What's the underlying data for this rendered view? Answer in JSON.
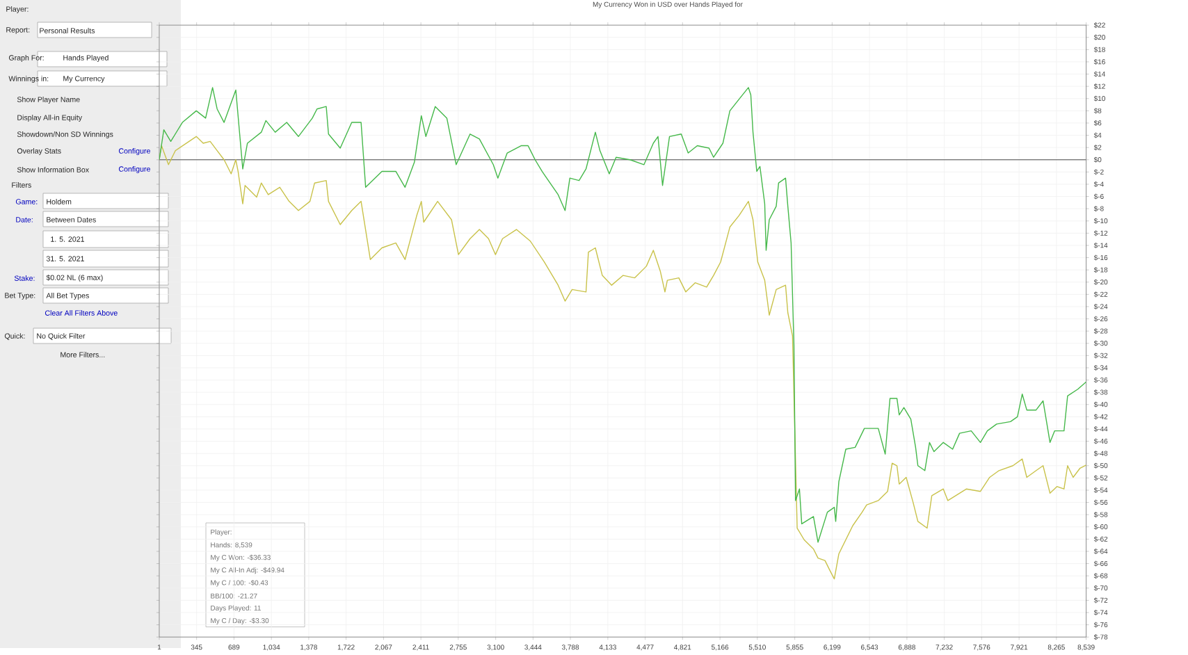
{
  "chart_data": {
    "type": "line",
    "title": "My Currency Won in USD over Hands Played for",
    "series": [
      {
        "color": "#45b84a",
        "x": [
          1,
          43,
          107,
          214,
          342,
          428,
          492,
          534,
          598,
          706,
          770,
          813,
          941,
          983,
          1069,
          1175,
          1283,
          1411,
          1454,
          1539,
          1560,
          1668,
          1774,
          1860,
          1902,
          2052,
          2180,
          2265,
          2351,
          2415,
          2457,
          2543,
          2650,
          2736,
          2864,
          2950,
          3078,
          3120,
          3206,
          3334,
          3398,
          3463,
          3527,
          3675,
          3739,
          3783,
          3868,
          3932,
          4018,
          4060,
          4146,
          4209,
          4338,
          4466,
          4552,
          4595,
          4637,
          4701,
          4809,
          4873,
          4957,
          5065,
          5107,
          5193,
          5257,
          5342,
          5428,
          5450,
          5470,
          5505,
          5534,
          5578,
          5591,
          5620,
          5684,
          5706,
          5770,
          5791,
          5821,
          5847,
          5862,
          5898,
          5919,
          6027,
          6069,
          6155,
          6219,
          6232,
          6261,
          6325,
          6411,
          6496,
          6624,
          6688,
          6732,
          6796,
          6817,
          6860,
          6924,
          6968,
          6989,
          7053,
          7096,
          7137,
          7223,
          7309,
          7373,
          7480,
          7565,
          7629,
          7714,
          7842,
          7906,
          7950,
          7992,
          8078,
          8142,
          8206,
          8249,
          8335,
          8368,
          8462,
          8539
        ],
        "values": [
          0,
          4.9,
          3.0,
          6.1,
          8.0,
          6.8,
          11.8,
          8.3,
          6.1,
          11.4,
          -1.5,
          2.7,
          4.5,
          6.4,
          4.5,
          6.1,
          3.8,
          6.8,
          8.3,
          8.7,
          4.2,
          1.9,
          6.1,
          6.1,
          -4.5,
          -1.9,
          -1.9,
          -4.5,
          -0.4,
          7.2,
          3.8,
          8.7,
          6.8,
          -0.8,
          4.2,
          3.4,
          -0.8,
          -3.0,
          1.1,
          2.3,
          2.3,
          0,
          -1.9,
          -5.7,
          -8.3,
          -3.0,
          -3.4,
          -1.5,
          4.5,
          1.5,
          -2.3,
          0.4,
          0,
          -0.8,
          2.7,
          3.8,
          -4.2,
          3.8,
          4.2,
          1.1,
          2.3,
          1.9,
          0.4,
          2.7,
          8.0,
          9.9,
          11.8,
          10.6,
          4.5,
          -1.9,
          -1.1,
          -7.2,
          -14.8,
          -9.8,
          -7.6,
          -3.8,
          -3.0,
          -7.6,
          -13.6,
          -30.3,
          -55.7,
          -53.8,
          -59.5,
          -58.3,
          -62.5,
          -57.6,
          -56.8,
          -59.1,
          -52.6,
          -47.3,
          -47.0,
          -43.9,
          -43.9,
          -48.1,
          -39.0,
          -39.0,
          -41.7,
          -40.5,
          -42.4,
          -47.0,
          -50.0,
          -50.8,
          -46.2,
          -47.7,
          -46.2,
          -47.3,
          -44.7,
          -44.3,
          -46.2,
          -44.3,
          -43.2,
          -42.8,
          -42.0,
          -38.3,
          -40.9,
          -40.9,
          -39.4,
          -46.2,
          -44.3,
          -44.3,
          -38.6,
          -37.5,
          -36.3
        ]
      },
      {
        "color": "#c9c24a",
        "x": [
          1,
          22,
          86,
          150,
          342,
          406,
          470,
          534,
          598,
          663,
          706,
          727,
          770,
          791,
          898,
          941,
          1005,
          1111,
          1197,
          1283,
          1389,
          1432,
          1539,
          1560,
          1668,
          1774,
          1860,
          1945,
          2052,
          2180,
          2265,
          2373,
          2415,
          2437,
          2565,
          2693,
          2757,
          2864,
          2950,
          3034,
          3098,
          3163,
          3291,
          3419,
          3547,
          3675,
          3739,
          3804,
          3932,
          3954,
          4018,
          4082,
          4168,
          4274,
          4381,
          4488,
          4552,
          4616,
          4659,
          4681,
          4787,
          4851,
          4937,
          5043,
          5107,
          5172,
          5257,
          5342,
          5428,
          5470,
          5514,
          5578,
          5620,
          5684,
          5770,
          5791,
          5834,
          5877,
          5941,
          6027,
          6069,
          6133,
          6175,
          6219,
          6261,
          6325,
          6389,
          6475,
          6517,
          6624,
          6710,
          6752,
          6796,
          6817,
          6881,
          6945,
          6989,
          7074,
          7117,
          7223,
          7265,
          7437,
          7565,
          7650,
          7736,
          7864,
          7950,
          7992,
          8078,
          8142,
          8206,
          8270,
          8335,
          8368,
          8419,
          8483,
          8539
        ],
        "values": [
          0,
          2.3,
          -0.8,
          1.5,
          3.8,
          2.7,
          3.0,
          1.5,
          0,
          -2.3,
          0,
          -1.9,
          -7.2,
          -4.2,
          -6.1,
          -3.8,
          -5.7,
          -4.5,
          -6.8,
          -8.3,
          -6.8,
          -3.8,
          -3.4,
          -6.8,
          -10.6,
          -8.3,
          -6.8,
          -16.3,
          -14.4,
          -13.6,
          -16.3,
          -9.1,
          -6.8,
          -10.2,
          -6.8,
          -9.8,
          -15.5,
          -12.9,
          -11.4,
          -12.9,
          -15.5,
          -12.9,
          -11.4,
          -13.3,
          -16.7,
          -20.5,
          -23.1,
          -21.2,
          -21.6,
          -15.1,
          -14.4,
          -18.9,
          -20.5,
          -18.9,
          -19.3,
          -17.4,
          -14.8,
          -18.2,
          -21.6,
          -19.7,
          -19.3,
          -21.6,
          -20.1,
          -20.8,
          -18.9,
          -16.7,
          -11.0,
          -9.1,
          -6.8,
          -9.8,
          -16.7,
          -19.7,
          -25.4,
          -21.2,
          -20.5,
          -25.0,
          -28.8,
          -60.2,
          -62.1,
          -63.6,
          -65.1,
          -65.5,
          -67.0,
          -68.5,
          -64.4,
          -62.1,
          -59.8,
          -57.6,
          -56.4,
          -55.7,
          -54.2,
          -49.6,
          -50.0,
          -53.0,
          -51.9,
          -56.0,
          -59.1,
          -60.2,
          -54.9,
          -53.8,
          -55.7,
          -53.8,
          -54.2,
          -51.9,
          -50.8,
          -50.0,
          -48.9,
          -51.9,
          -50.8,
          -50.0,
          -54.5,
          -53.4,
          -53.8,
          -50.0,
          -51.9,
          -50.4,
          -49.9
        ]
      }
    ],
    "xlim": [
      1,
      8539
    ],
    "xticks": [
      {
        "value": 1,
        "label": "1"
      },
      {
        "value": 345,
        "label": "345"
      },
      {
        "value": 689,
        "label": "689"
      },
      {
        "value": 1034,
        "label": "1,034"
      },
      {
        "value": 1378,
        "label": "1,378"
      },
      {
        "value": 1722,
        "label": "1,722"
      },
      {
        "value": 2067,
        "label": "2,067"
      },
      {
        "value": 2411,
        "label": "2,411"
      },
      {
        "value": 2755,
        "label": "2,755"
      },
      {
        "value": 3100,
        "label": "3,100"
      },
      {
        "value": 3444,
        "label": "3,444"
      },
      {
        "value": 3788,
        "label": "3,788"
      },
      {
        "value": 4133,
        "label": "4,133"
      },
      {
        "value": 4477,
        "label": "4,477"
      },
      {
        "value": 4821,
        "label": "4,821"
      },
      {
        "value": 5166,
        "label": "5,166"
      },
      {
        "value": 5510,
        "label": "5,510"
      },
      {
        "value": 5855,
        "label": "5,855"
      },
      {
        "value": 6199,
        "label": "6,199"
      },
      {
        "value": 6543,
        "label": "6,543"
      },
      {
        "value": 6888,
        "label": "6,888"
      },
      {
        "value": 7232,
        "label": "7,232"
      },
      {
        "value": 7576,
        "label": "7,576"
      },
      {
        "value": 7921,
        "label": "7,921"
      },
      {
        "value": 8265,
        "label": "8,265"
      },
      {
        "value": 8539,
        "label": "8,539"
      }
    ],
    "ylim": [
      -78,
      22
    ],
    "yticks": [
      {
        "value": 22,
        "label": "$22"
      },
      {
        "value": 20,
        "label": "$20"
      },
      {
        "value": 18,
        "label": "$18"
      },
      {
        "value": 16,
        "label": "$16"
      },
      {
        "value": 14,
        "label": "$14"
      },
      {
        "value": 12,
        "label": "$12"
      },
      {
        "value": 10,
        "label": "$10"
      },
      {
        "value": 8,
        "label": "$8"
      },
      {
        "value": 6,
        "label": "$6"
      },
      {
        "value": 4,
        "label": "$4"
      },
      {
        "value": 2,
        "label": "$2"
      },
      {
        "value": 0,
        "label": "$0"
      },
      {
        "value": -2,
        "label": "$-2"
      },
      {
        "value": -4,
        "label": "$-4"
      },
      {
        "value": -6,
        "label": "$-6"
      },
      {
        "value": -8,
        "label": "$-8"
      },
      {
        "value": -10,
        "label": "$-10"
      },
      {
        "value": -12,
        "label": "$-12"
      },
      {
        "value": -14,
        "label": "$-14"
      },
      {
        "value": -16,
        "label": "$-16"
      },
      {
        "value": -18,
        "label": "$-18"
      },
      {
        "value": -20,
        "label": "$-20"
      },
      {
        "value": -22,
        "label": "$-22"
      },
      {
        "value": -24,
        "label": "$-24"
      },
      {
        "value": -26,
        "label": "$-26"
      },
      {
        "value": -28,
        "label": "$-28"
      },
      {
        "value": -30,
        "label": "$-30"
      },
      {
        "value": -32,
        "label": "$-32"
      },
      {
        "value": -34,
        "label": "$-34"
      },
      {
        "value": -36,
        "label": "$-36"
      },
      {
        "value": -38,
        "label": "$-38"
      },
      {
        "value": -40,
        "label": "$-40"
      },
      {
        "value": -42,
        "label": "$-42"
      },
      {
        "value": -44,
        "label": "$-44"
      },
      {
        "value": -46,
        "label": "$-46"
      },
      {
        "value": -48,
        "label": "$-48"
      },
      {
        "value": -50,
        "label": "$-50"
      },
      {
        "value": -52,
        "label": "$-52"
      },
      {
        "value": -54,
        "label": "$-54"
      },
      {
        "value": -56,
        "label": "$-56"
      },
      {
        "value": -58,
        "label": "$-58"
      },
      {
        "value": -60,
        "label": "$-60"
      },
      {
        "value": -62,
        "label": "$-62"
      },
      {
        "value": -64,
        "label": "$-64"
      },
      {
        "value": -66,
        "label": "$-66"
      },
      {
        "value": -68,
        "label": "$-68"
      },
      {
        "value": -70,
        "label": "$-70"
      },
      {
        "value": -72,
        "label": "$-72"
      },
      {
        "value": -74,
        "label": "$-74"
      },
      {
        "value": -76,
        "label": "$-76"
      },
      {
        "value": -78,
        "label": "$-78"
      }
    ],
    "grid": true,
    "ref_lines": [
      {
        "axis": "y",
        "value": 0,
        "color": "#777777"
      }
    ],
    "annotations": [
      "Player:",
      "Report:",
      "Personal Results",
      "Graph For:",
      "Hands Played",
      "Winnings in:",
      "My Currency",
      "Show Player Name",
      "Display All-in Equity",
      "Showdown/Non SD Winnings",
      "Overlay Stats",
      "Configure",
      "Show Information Box",
      "Configure",
      "Filters",
      "Game:",
      "Holdem",
      "Date:",
      "Between Dates",
      "1. 5. 2021",
      "31. 5. 2021",
      "Stake:",
      "$0.02 NL (6 max)",
      "Bet Type:",
      "All Bet Types",
      "Clear All Filters Above",
      "Quick:",
      "No Quick Filter",
      "More Filters...",
      "Player:",
      "Hands: 8,539",
      "My C Won: -$36.33",
      "My C All-In Adj: -$49.94",
      "My C / 100: -$0.43",
      "BB/100: -21.27",
      "Days Played: 11",
      "My C / Day: -$3.30"
    ]
  }
}
